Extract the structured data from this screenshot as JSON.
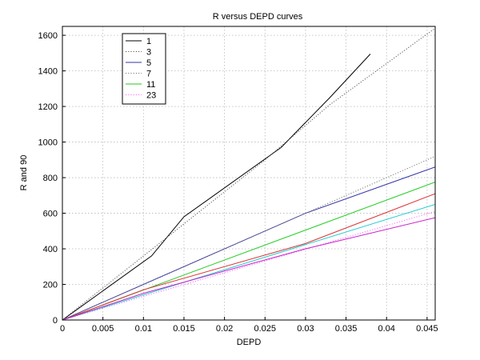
{
  "chart_data": {
    "type": "line",
    "title": "R versus DEPD curves",
    "xlabel": "DEPD",
    "ylabel": "R and 90",
    "xlim": [
      0,
      0.046
    ],
    "ylim": [
      0,
      1650
    ],
    "x_ticks": [
      0,
      0.005,
      0.01,
      0.015,
      0.02,
      0.025,
      0.03,
      0.035,
      0.04,
      0.045
    ],
    "x_tick_labels": [
      "0",
      "0.005",
      "0.01",
      "0.015",
      "0.02",
      "0.025",
      "0.03",
      "0.035",
      "0.04",
      "0.045"
    ],
    "y_ticks": [
      0,
      200,
      400,
      600,
      800,
      1000,
      1200,
      1400,
      1600
    ],
    "y_tick_labels": [
      "0",
      "200",
      "400",
      "600",
      "800",
      "1000",
      "1200",
      "1400",
      "1600"
    ],
    "grid": true,
    "legend_position": "top-left",
    "series": [
      {
        "name": "1",
        "color": "#000000",
        "dash": "solid",
        "x": [
          0,
          0.011,
          0.015,
          0.027,
          0.033,
          0.038
        ],
        "y": [
          0,
          360,
          580,
          970,
          1250,
          1495
        ]
      },
      {
        "name": "3",
        "color": "#555555",
        "dash": "dotted",
        "x": [
          0,
          0.015,
          0.025,
          0.033,
          0.046
        ],
        "y": [
          0,
          540,
          900,
          1210,
          1640
        ]
      },
      {
        "name": "5",
        "color": "#3333aa",
        "dash": "solid",
        "x": [
          0,
          0.01,
          0.02,
          0.03,
          0.046
        ],
        "y": [
          0,
          200,
          400,
          600,
          860
        ]
      },
      {
        "name": "7",
        "color": "#777777",
        "dash": "dotted",
        "x": [
          0,
          0.046
        ],
        "y": [
          0,
          920
        ]
      },
      {
        "name": "11",
        "color": "#22cc22",
        "dash": "solid",
        "x": [
          0,
          0.046
        ],
        "y": [
          0,
          775
        ]
      },
      {
        "name": "23",
        "color": "#ff66ff",
        "dash": "dotted",
        "x": [
          0,
          0.046
        ],
        "y": [
          0,
          610
        ]
      },
      {
        "name": "",
        "color": "#dd3333",
        "dash": "solid",
        "x": [
          0,
          0.01,
          0.03,
          0.046
        ],
        "y": [
          0,
          170,
          430,
          710
        ]
      },
      {
        "name": "",
        "color": "#22cccc",
        "dash": "solid",
        "x": [
          0,
          0.046
        ],
        "y": [
          0,
          650
        ]
      },
      {
        "name": "",
        "color": "#cc22cc",
        "dash": "solid",
        "x": [
          0,
          0.01,
          0.03,
          0.046
        ],
        "y": [
          0,
          150,
          400,
          575
        ]
      }
    ]
  }
}
